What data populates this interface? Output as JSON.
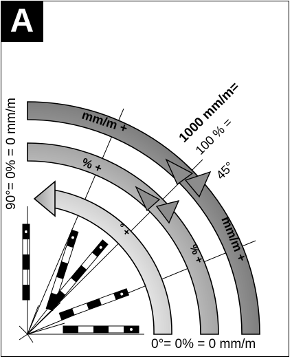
{
  "panel": {
    "label": "A",
    "left_axis_label": "90°= 0% = 0 mm/m",
    "bottom_axis_label": "0°= 0% = 0 mm/m",
    "label_1000": "1000 mm/m=",
    "label_100pct": "100 % =",
    "label_45deg": "45°"
  },
  "arrows": {
    "outer_arrow_label": "mm/m +",
    "middle_arrow_label": "% +",
    "inner_arrow_label": "° +",
    "outer_arrow_right_label": "mm/m +",
    "middle_arrow_right_label": "% +"
  },
  "legend_colors": {
    "arrow_fill_light": "#f2f2f2",
    "arrow_fill_dark": "#8c8c8c",
    "rule_black": "#000000",
    "rule_white": "#ffffff"
  }
}
